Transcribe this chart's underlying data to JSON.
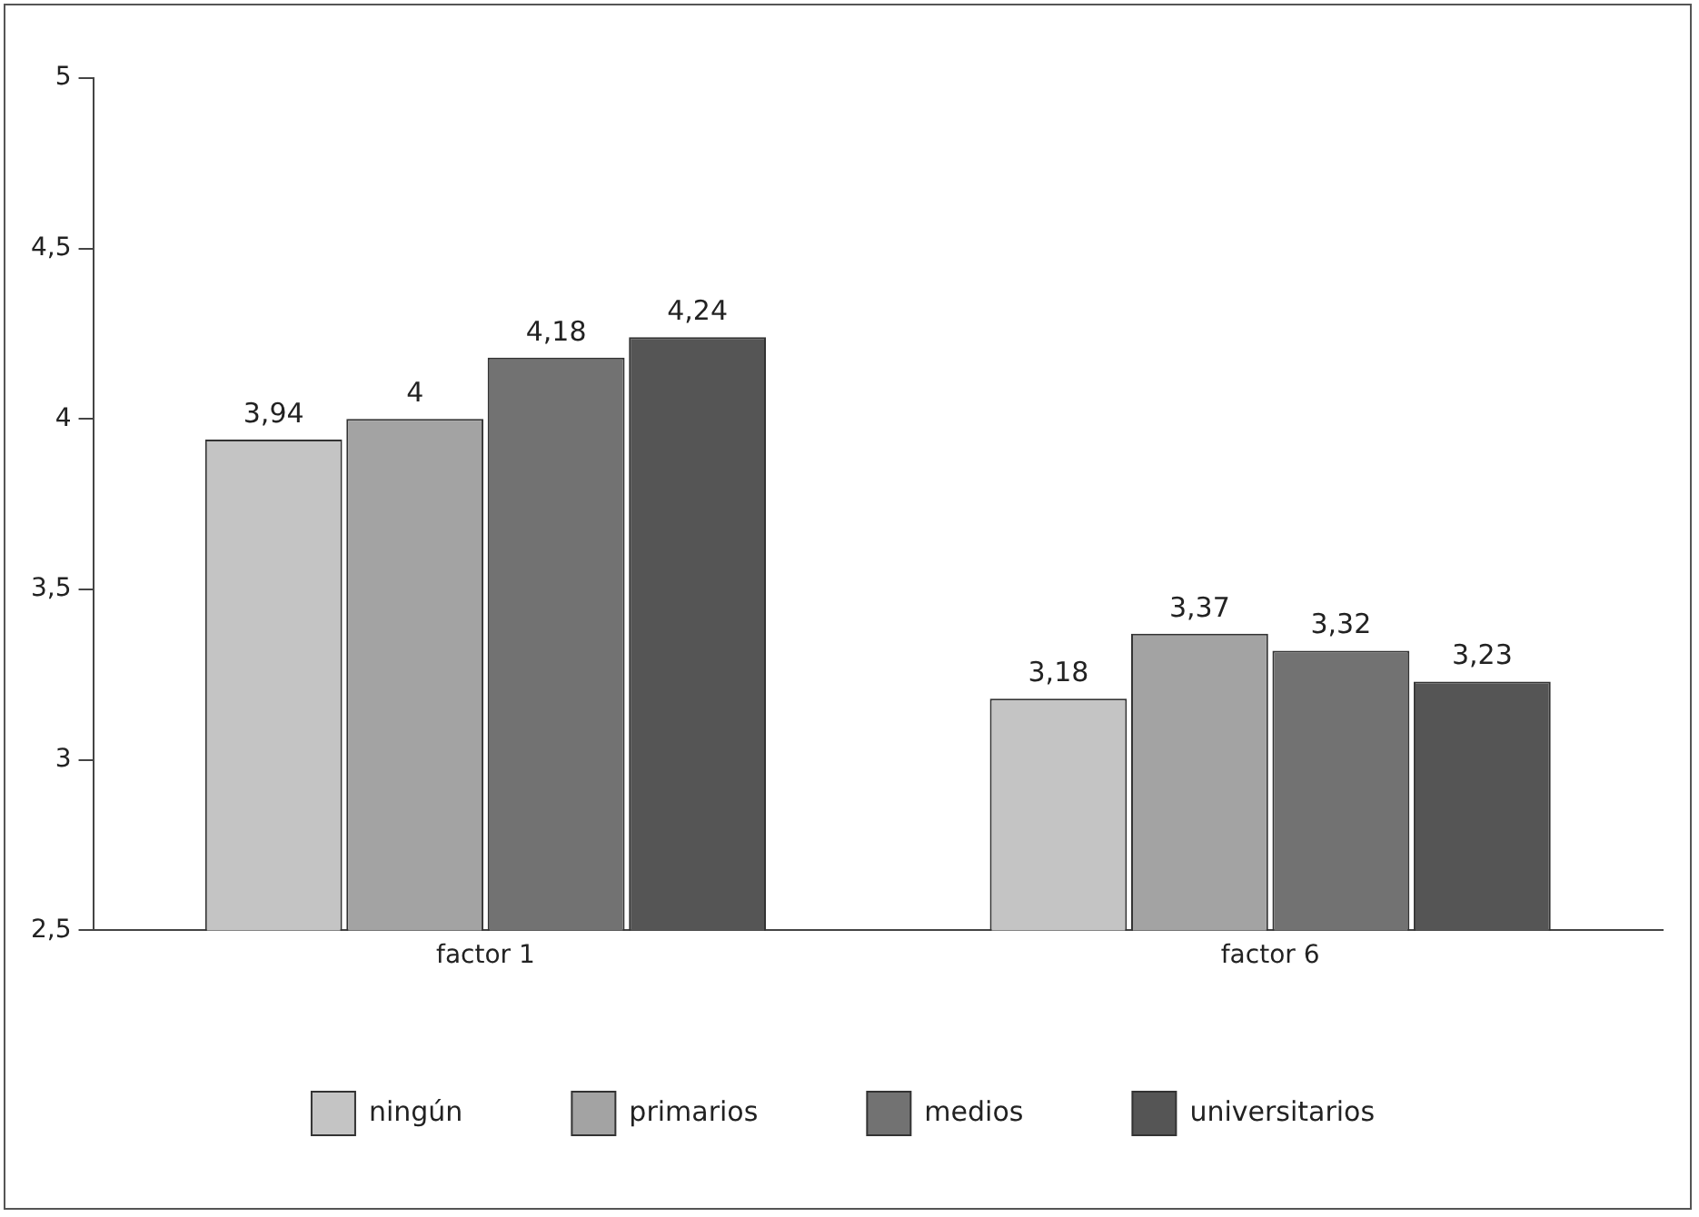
{
  "chart_data": {
    "type": "bar",
    "categories": [
      "factor 1",
      "factor 6"
    ],
    "series": [
      {
        "name": "ningún",
        "color": "#c4c4c4",
        "values": [
          3.94,
          3.18
        ],
        "value_labels": [
          "3,94",
          "3,18"
        ]
      },
      {
        "name": "primarios",
        "color": "#a3a3a3",
        "values": [
          4,
          3.37
        ],
        "value_labels": [
          "4",
          "3,37"
        ]
      },
      {
        "name": "medios",
        "color": "#727272",
        "values": [
          4.18,
          3.32
        ],
        "value_labels": [
          "4,18",
          "3,32"
        ]
      },
      {
        "name": "universitarios",
        "color": "#555555",
        "values": [
          4.24,
          3.23
        ],
        "value_labels": [
          "4,24",
          "3,23"
        ]
      }
    ],
    "ylim": [
      2.5,
      5
    ],
    "yticks": [
      {
        "value": 2.5,
        "label": "2,5"
      },
      3,
      {
        "value": 3.5,
        "label": "3,5"
      },
      4,
      {
        "value": 4.5,
        "label": "4,5"
      },
      5
    ],
    "grid": false,
    "legend": "bottom"
  }
}
